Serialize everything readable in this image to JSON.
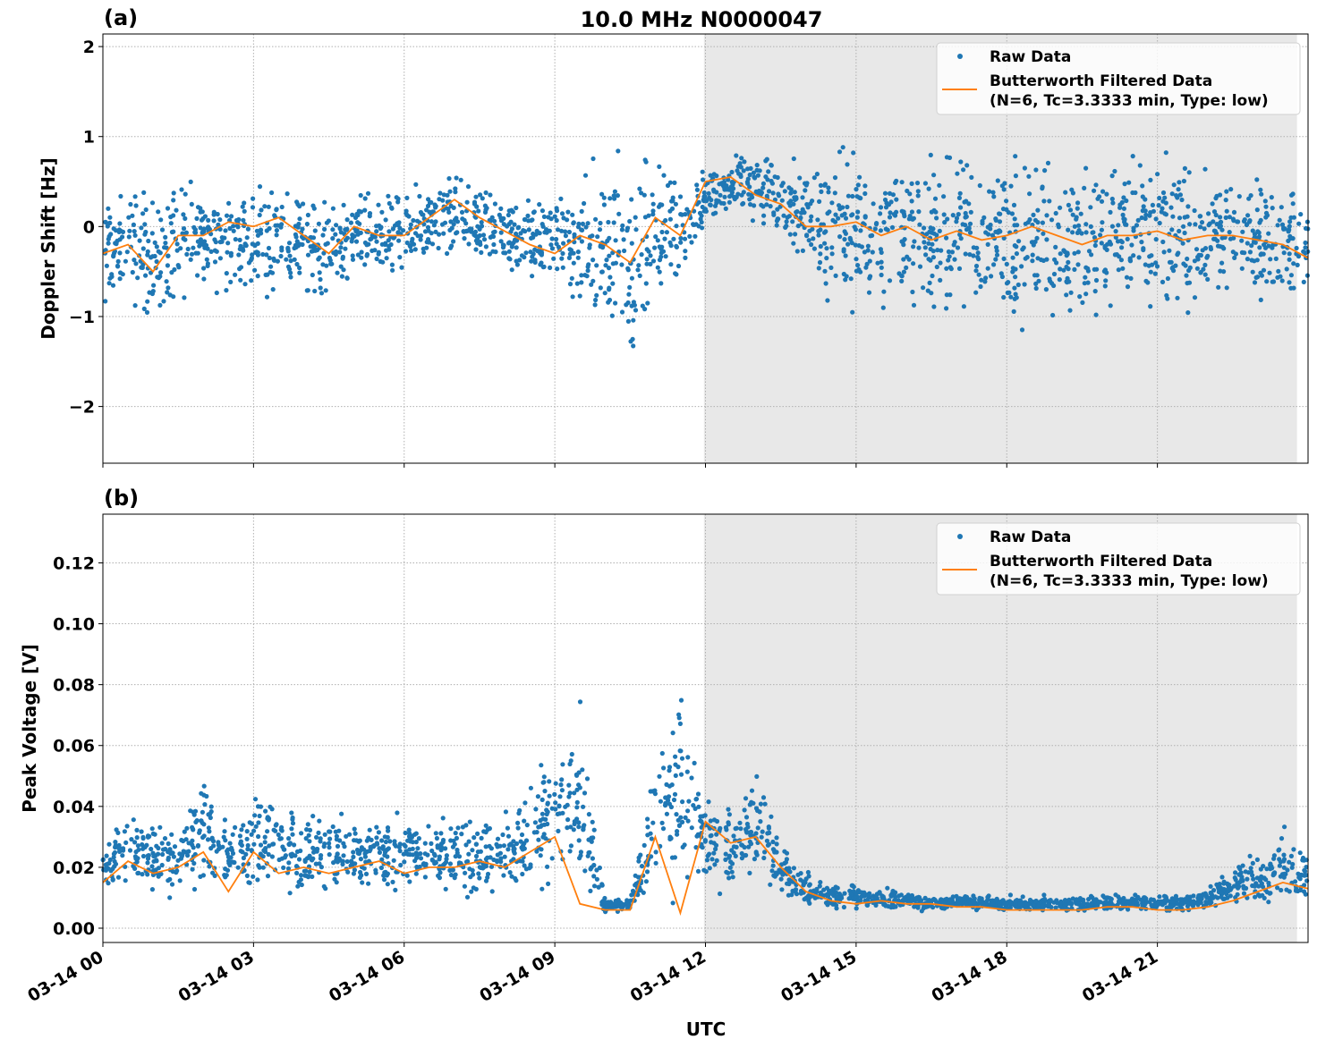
{
  "figure": {
    "title": "10.0 MHz N0000047",
    "xlabel": "UTC",
    "x_tick_labels": [
      "03-14 00",
      "03-14 03",
      "03-14 06",
      "03-14 09",
      "03-14 12",
      "03-14 15",
      "03-14 18",
      "03-14 21"
    ],
    "x_ticks_hours": [
      0,
      3,
      6,
      9,
      12,
      15,
      18,
      21
    ],
    "xlim_hours": [
      0,
      24
    ],
    "shaded_interval_hours": [
      11.97,
      23.78
    ],
    "shade_color": "#e8e8e8"
  },
  "chart_data": [
    {
      "type": "scatter",
      "panel_label": "(a)",
      "ylabel": "Doppler Shift [Hz]",
      "ylim": [
        -2.63,
        2.14
      ],
      "y_ticks": [
        2,
        1,
        0,
        -1,
        -2
      ],
      "y_tick_labels": [
        "2",
        "1",
        "0",
        "−1",
        "−2"
      ],
      "grid": true,
      "legend": {
        "placement": "upper-right",
        "entries": [
          "Raw Data",
          "Butterworth Filtered Data",
          "(N=6, Tc=3.3333 min, Type: low)"
        ]
      },
      "x_hours": [
        0,
        0.5,
        1,
        1.5,
        2,
        2.5,
        3,
        3.5,
        4,
        4.5,
        5,
        5.5,
        6,
        6.5,
        7,
        7.5,
        8,
        8.5,
        9,
        9.5,
        10,
        10.5,
        11,
        11.5,
        12,
        12.5,
        13,
        13.5,
        14,
        14.5,
        15,
        15.5,
        16,
        16.5,
        17,
        17.5,
        18,
        18.5,
        19,
        19.5,
        20,
        20.5,
        21,
        21.5,
        22,
        22.5,
        23,
        23.5,
        24
      ],
      "series": [
        {
          "name": "Raw Data",
          "color": "#1f77b4",
          "range_low": [
            -1.0,
            -1.1,
            -1.3,
            -1.0,
            -0.8,
            -0.9,
            -1.0,
            -0.8,
            -0.9,
            -0.9,
            -0.7,
            -0.7,
            -0.6,
            -0.6,
            -0.5,
            -0.6,
            -0.7,
            -0.8,
            -0.7,
            -1.2,
            -1.6,
            -1.8,
            -1.2,
            -0.8,
            -0.1,
            0.0,
            -0.1,
            -0.3,
            -0.8,
            -1.1,
            -1.1,
            -1.2,
            -1.2,
            -1.2,
            -1.2,
            -1.2,
            -1.3,
            -1.3,
            -1.3,
            -1.3,
            -1.2,
            -1.2,
            -1.2,
            -1.2,
            -1.1,
            -1.0,
            -1.0,
            -0.9,
            -0.9
          ],
          "range_high": [
            0.4,
            0.6,
            0.7,
            0.7,
            0.6,
            0.6,
            0.6,
            0.7,
            0.5,
            0.4,
            0.5,
            0.5,
            0.5,
            0.6,
            0.7,
            0.6,
            0.5,
            0.5,
            0.4,
            0.8,
            1.0,
            1.1,
            1.0,
            0.8,
            0.8,
            0.9,
            1.0,
            0.9,
            1.0,
            1.1,
            1.1,
            1.1,
            1.0,
            1.0,
            1.0,
            1.0,
            1.1,
            1.1,
            1.0,
            1.0,
            1.0,
            1.0,
            1.0,
            0.9,
            0.8,
            0.8,
            0.7,
            0.6,
            0.5
          ]
        },
        {
          "name": "Butterworth Filtered Data",
          "color": "#ff7f0e",
          "values": [
            -0.3,
            -0.2,
            -0.5,
            -0.1,
            -0.1,
            0.05,
            0.0,
            0.1,
            -0.1,
            -0.3,
            0.0,
            -0.1,
            -0.1,
            0.1,
            0.3,
            0.1,
            -0.05,
            -0.2,
            -0.3,
            -0.1,
            -0.2,
            -0.4,
            0.1,
            -0.1,
            0.5,
            0.55,
            0.35,
            0.25,
            0.0,
            0.0,
            0.05,
            -0.1,
            0.0,
            -0.15,
            -0.05,
            -0.15,
            -0.1,
            0.0,
            -0.1,
            -0.2,
            -0.1,
            -0.1,
            -0.05,
            -0.15,
            -0.1,
            -0.1,
            -0.15,
            -0.2,
            -0.35
          ]
        }
      ]
    },
    {
      "type": "scatter",
      "panel_label": "(b)",
      "ylabel": "Peak Voltage [V]",
      "ylim": [
        -0.0047,
        0.136
      ],
      "y_ticks": [
        0,
        0.02,
        0.04,
        0.06,
        0.08,
        0.1,
        0.12
      ],
      "y_tick_labels": [
        "0.00",
        "0.02",
        "0.04",
        "0.06",
        "0.08",
        "0.10",
        "0.12"
      ],
      "grid": true,
      "legend": {
        "placement": "upper-right",
        "entries": [
          "Raw Data",
          "Butterworth Filtered Data",
          "(N=6, Tc=3.3333 min, Type: low)"
        ]
      },
      "x_hours": [
        0,
        0.5,
        1,
        1.5,
        2,
        2.5,
        3,
        3.5,
        4,
        4.5,
        5,
        5.5,
        6,
        6.5,
        7,
        7.5,
        8,
        8.5,
        9,
        9.5,
        10,
        10.5,
        11,
        11.5,
        12,
        12.5,
        13,
        13.5,
        14,
        14.5,
        15,
        15.5,
        16,
        16.5,
        17,
        17.5,
        18,
        18.5,
        19,
        19.5,
        20,
        20.5,
        21,
        21.5,
        22,
        22.5,
        23,
        23.5,
        24
      ],
      "series": [
        {
          "name": "Raw Data",
          "color": "#1f77b4",
          "range_low": [
            0.008,
            0.008,
            0.008,
            0.008,
            0.008,
            0.008,
            0.007,
            0.008,
            0.008,
            0.008,
            0.008,
            0.008,
            0.008,
            0.008,
            0.008,
            0.008,
            0.008,
            0.008,
            0.008,
            0.005,
            0.005,
            0.005,
            0.006,
            0.006,
            0.01,
            0.01,
            0.01,
            0.008,
            0.006,
            0.005,
            0.005,
            0.005,
            0.005,
            0.005,
            0.005,
            0.005,
            0.005,
            0.005,
            0.005,
            0.005,
            0.005,
            0.005,
            0.005,
            0.005,
            0.005,
            0.006,
            0.006,
            0.006,
            0.007
          ],
          "range_high": [
            0.03,
            0.045,
            0.04,
            0.035,
            0.06,
            0.035,
            0.05,
            0.05,
            0.04,
            0.04,
            0.04,
            0.04,
            0.04,
            0.04,
            0.04,
            0.04,
            0.04,
            0.05,
            0.07,
            0.08,
            0.01,
            0.01,
            0.06,
            0.09,
            0.05,
            0.04,
            0.06,
            0.03,
            0.02,
            0.015,
            0.015,
            0.015,
            0.013,
            0.012,
            0.012,
            0.012,
            0.011,
            0.011,
            0.011,
            0.011,
            0.012,
            0.012,
            0.012,
            0.012,
            0.015,
            0.02,
            0.03,
            0.035,
            0.03
          ]
        },
        {
          "name": "Butterworth Filtered Data",
          "color": "#ff7f0e",
          "values": [
            0.015,
            0.022,
            0.018,
            0.02,
            0.025,
            0.012,
            0.025,
            0.018,
            0.02,
            0.018,
            0.02,
            0.022,
            0.018,
            0.02,
            0.02,
            0.022,
            0.02,
            0.025,
            0.03,
            0.008,
            0.006,
            0.006,
            0.03,
            0.005,
            0.035,
            0.028,
            0.03,
            0.02,
            0.012,
            0.009,
            0.008,
            0.009,
            0.008,
            0.008,
            0.007,
            0.007,
            0.006,
            0.006,
            0.006,
            0.006,
            0.007,
            0.007,
            0.006,
            0.006,
            0.007,
            0.009,
            0.012,
            0.015,
            0.013
          ]
        }
      ]
    }
  ]
}
